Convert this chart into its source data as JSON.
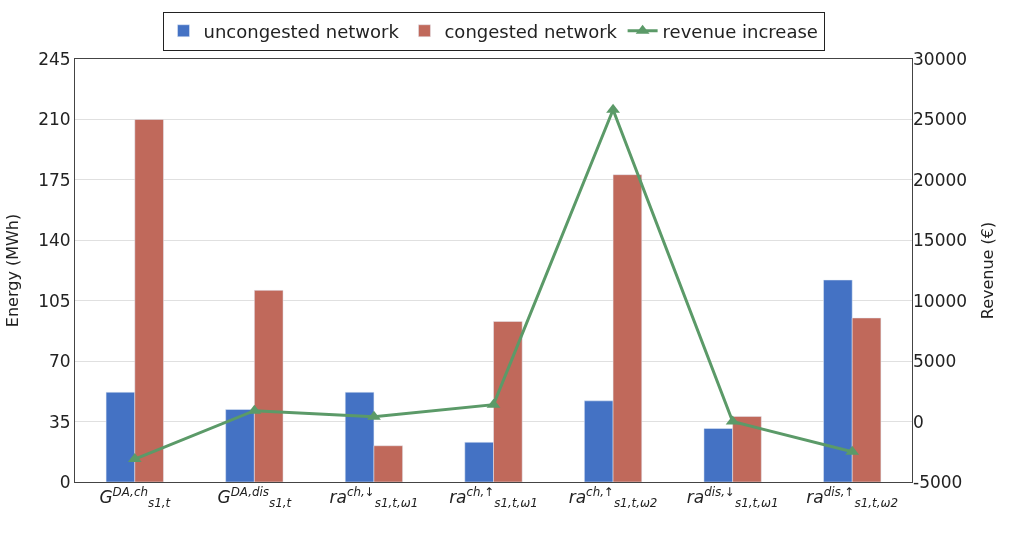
{
  "chart_data": {
    "type": "bar",
    "ylabel": "Energy (MWh)",
    "y2label": "Revenue (€)",
    "categories": [
      "G$^{DA,ch}$$_{s1,t}$",
      "G$^{DA,dis}$$_{s1,t}$",
      "ra$^{ch,↓}$$_{s1,t,ω1}$",
      "ra$^{ch,↑}$$_{s1,t,ω1}$",
      "ra$^{ch,↑}$$_{s1,t,ω2}$",
      "ra$^{dis,↓}$$_{s1,t,ω1}$",
      "ra$^{dis,↑}$$_{s1,t,ω2}$"
    ],
    "series": [
      {
        "name": "uncongested network",
        "color": "#4472c4",
        "values": [
          52,
          42,
          52,
          23,
          47,
          31,
          117
        ]
      },
      {
        "name": "congested network",
        "color": "#c0695b",
        "values": [
          210,
          111,
          21,
          93,
          178,
          38,
          95
        ]
      },
      {
        "name": "revenue increase",
        "color": "#5b9a68",
        "type": "line",
        "axis": "y2",
        "marker": "triangle",
        "values": [
          -3100,
          900,
          400,
          1400,
          25800,
          0,
          -2500
        ]
      }
    ],
    "ylim": [
      0,
      245
    ],
    "yticks": [
      0,
      35,
      70,
      105,
      140,
      175,
      210,
      245
    ],
    "y2lim": [
      -5000,
      30000
    ],
    "y2ticks": [
      -5000,
      0,
      5000,
      10000,
      15000,
      20000,
      25000,
      30000
    ],
    "grid": "y",
    "legend": "top"
  }
}
